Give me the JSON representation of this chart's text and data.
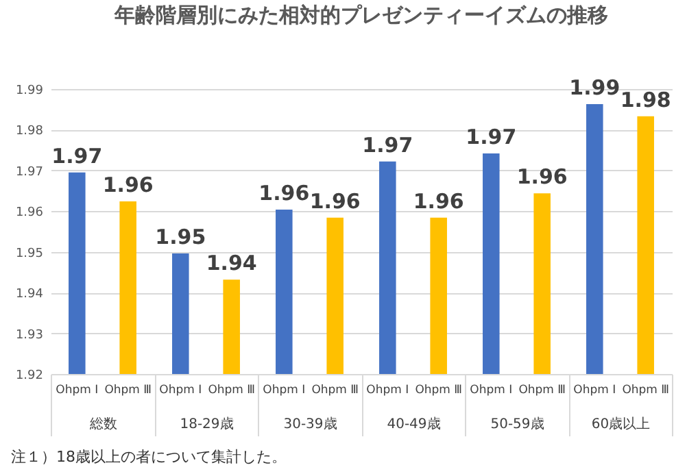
{
  "chart_data": {
    "type": "bar",
    "title": "年齢階層別にみた相対的プレゼンティーイズムの推移",
    "categories": [
      "総数",
      "18-29歳",
      "30-39歳",
      "40-49歳",
      "50-59歳",
      "60歳以上"
    ],
    "series": [
      {
        "name": "Ohpm Ⅰ",
        "color": "#4472c4",
        "values": [
          1.9695,
          1.9496,
          1.9604,
          1.9722,
          1.9742,
          1.9863
        ],
        "value_labels": [
          "1.97",
          "1.95",
          "1.96",
          "1.97",
          "1.97",
          "1.99"
        ]
      },
      {
        "name": "Ohpm Ⅲ",
        "color": "#ffc000",
        "values": [
          1.9624,
          1.9432,
          1.9584,
          1.9584,
          1.9644,
          1.9833
        ],
        "value_labels": [
          "1.96",
          "1.94",
          "1.96",
          "1.96",
          "1.96",
          "1.98"
        ]
      }
    ],
    "ylim": [
      1.92,
      1.99
    ],
    "yticks": [
      1.92,
      1.93,
      1.94,
      1.95,
      1.96,
      1.97,
      1.98,
      1.99
    ],
    "grid": "y",
    "legend": false,
    "annotations": [
      "注１）18歳以上の者について集計した。"
    ]
  }
}
